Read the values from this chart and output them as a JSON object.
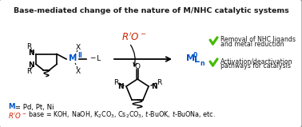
{
  "title": "Base-mediated change of the nature of M/NHC catalytic systems",
  "title_fontsize": 6.8,
  "bg_color": "#ffffff",
  "border_color": "#999999",
  "check1_line1": "Removal of NHC ligands",
  "check1_line2": "and metal reduction",
  "check2_line1": "Activation/deactivation",
  "check2_line2": "pathways for catalysis",
  "blue": "#0055cc",
  "red": "#cc2200",
  "green": "#44bb00",
  "black": "#1a1a1a",
  "figsize": [
    3.78,
    1.59
  ],
  "dpi": 100
}
